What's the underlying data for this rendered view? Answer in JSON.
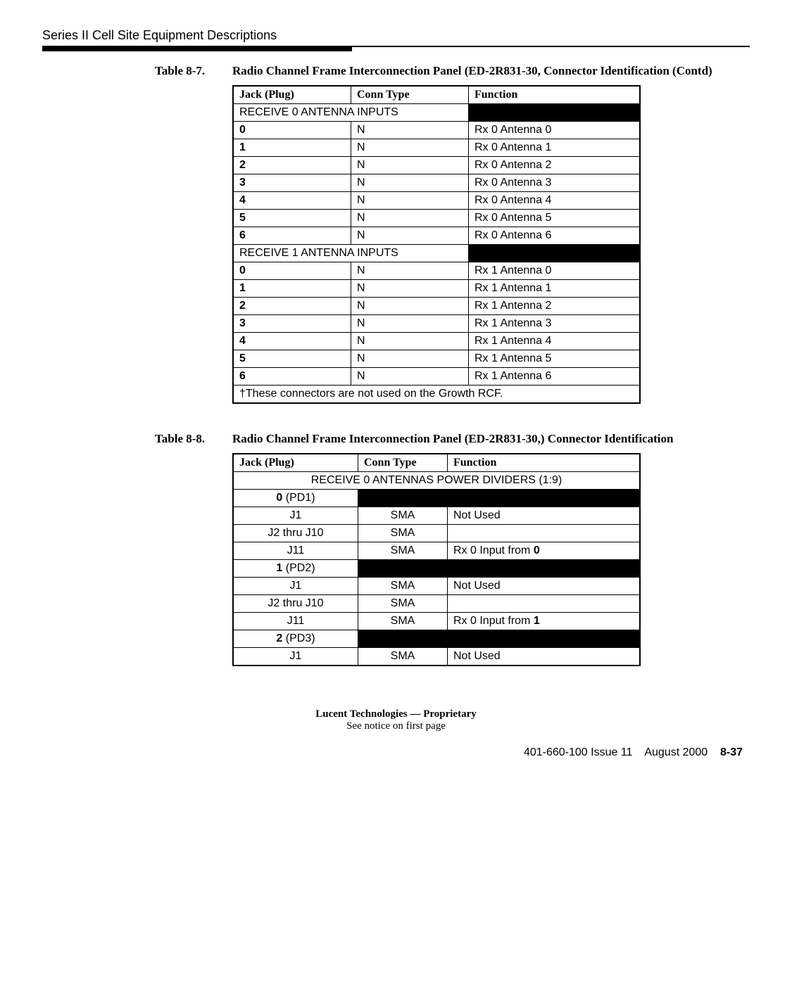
{
  "header": {
    "title": "Series II Cell Site Equipment Descriptions"
  },
  "table1": {
    "caption_number": "Table 8-7.",
    "caption_title": "Radio Channel Frame Interconnection Panel (ED-2R831-30, Connector Identification  (Contd)",
    "columns": [
      "Jack (Plug)",
      "Conn Type",
      "Function"
    ],
    "section_a": "RECEIVE 0 ANTENNA INPUTS",
    "rows_a": [
      {
        "jack": "0",
        "conn": "N",
        "func": "Rx 0 Antenna 0"
      },
      {
        "jack": "1",
        "conn": "N",
        "func": "Rx 0 Antenna 1"
      },
      {
        "jack": "2",
        "conn": "N",
        "func": "Rx 0 Antenna 2"
      },
      {
        "jack": "3",
        "conn": "N",
        "func": "Rx 0 Antenna 3"
      },
      {
        "jack": "4",
        "conn": "N",
        "func": "Rx 0 Antenna 4"
      },
      {
        "jack": "5",
        "conn": "N",
        "func": "Rx 0 Antenna 5"
      },
      {
        "jack": "6",
        "conn": "N",
        "func": "Rx 0 Antenna 6"
      }
    ],
    "section_b": "RECEIVE 1 ANTENNA INPUTS",
    "rows_b": [
      {
        "jack": "0",
        "conn": "N",
        "func": "Rx 1 Antenna 0"
      },
      {
        "jack": "1",
        "conn": "N",
        "func": "Rx 1 Antenna 1"
      },
      {
        "jack": "2",
        "conn": "N",
        "func": "Rx 1 Antenna 2"
      },
      {
        "jack": "3",
        "conn": "N",
        "func": "Rx 1 Antenna 3"
      },
      {
        "jack": "4",
        "conn": "N",
        "func": "Rx 1 Antenna 4"
      },
      {
        "jack": "5",
        "conn": "N",
        "func": "Rx 1 Antenna 5"
      },
      {
        "jack": "6",
        "conn": "N",
        "func": "Rx 1 Antenna 6"
      }
    ],
    "footnote": "†These connectors are not used on the Growth RCF."
  },
  "table2": {
    "caption_number": "Table 8-8.",
    "caption_title": "Radio Channel Frame Interconnection Panel (ED-2R831-30,) Connector Identification",
    "columns": [
      "Jack (Plug)",
      "Conn Type",
      "Function"
    ],
    "section_header": "RECEIVE 0 ANTENNAS POWER DIVIDERS (1:9)",
    "groups": [
      {
        "group_label_bold": "0",
        "group_label_rest": " (PD1)",
        "rows": [
          {
            "jack": "J1",
            "conn": "SMA",
            "func": "Not Used"
          },
          {
            "jack": "J2 thru J10",
            "conn": "SMA",
            "func": ""
          },
          {
            "jack": "J11",
            "conn": "SMA",
            "func_pre": "Rx 0 Input from ",
            "func_bold": "0"
          }
        ]
      },
      {
        "group_label_bold": "1",
        "group_label_rest": " (PD2)",
        "rows": [
          {
            "jack": "J1",
            "conn": "SMA",
            "func": "Not Used"
          },
          {
            "jack": "J2 thru J10",
            "conn": "SMA",
            "func": ""
          },
          {
            "jack": "J11",
            "conn": "SMA",
            "func_pre": "Rx 0 Input from ",
            "func_bold": "1"
          }
        ]
      },
      {
        "group_label_bold": "2",
        "group_label_rest": " (PD3)",
        "rows": [
          {
            "jack": "J1",
            "conn": "SMA",
            "func": "Not Used"
          }
        ]
      }
    ]
  },
  "footer": {
    "proprietary": "Lucent Technologies — Proprietary",
    "notice": "See notice on first page",
    "docline_left": "401-660-100 Issue 11",
    "docline_mid": "August 2000",
    "docline_page": "8-37"
  }
}
